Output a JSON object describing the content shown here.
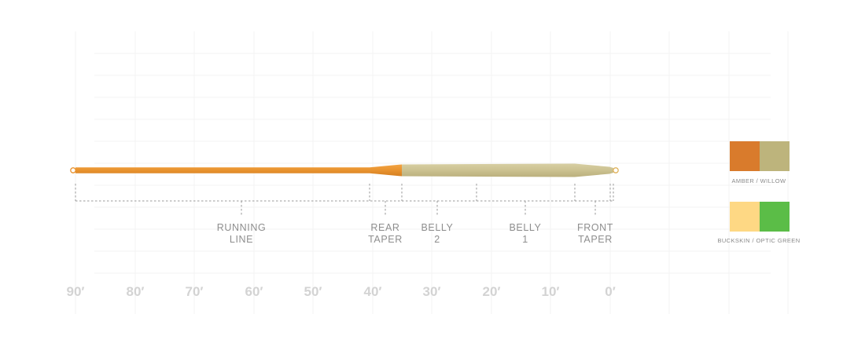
{
  "diagram": {
    "segments": [
      {
        "line1": "RUNNING",
        "line2": "LINE"
      },
      {
        "line1": "REAR",
        "line2": "TAPER"
      },
      {
        "line1": "BELLY",
        "line2": "2"
      },
      {
        "line1": "BELLY",
        "line2": "1"
      },
      {
        "line1": "FRONT",
        "line2": "TAPER"
      }
    ],
    "distance_labels": [
      "90′",
      "80′",
      "70′",
      "60′",
      "50′",
      "40′",
      "30′",
      "20′",
      "10′",
      "0′"
    ],
    "line_colors": {
      "running_line": "#e8922e",
      "head": "#cbc190"
    }
  },
  "color_options": [
    {
      "label": "AMBER / WILLOW",
      "colors": [
        "#d97b2c",
        "#bdb47c"
      ]
    },
    {
      "label": "BUCKSKIN / OPTIC GREEN",
      "colors": [
        "#fed884",
        "#5bbd47"
      ]
    }
  ]
}
